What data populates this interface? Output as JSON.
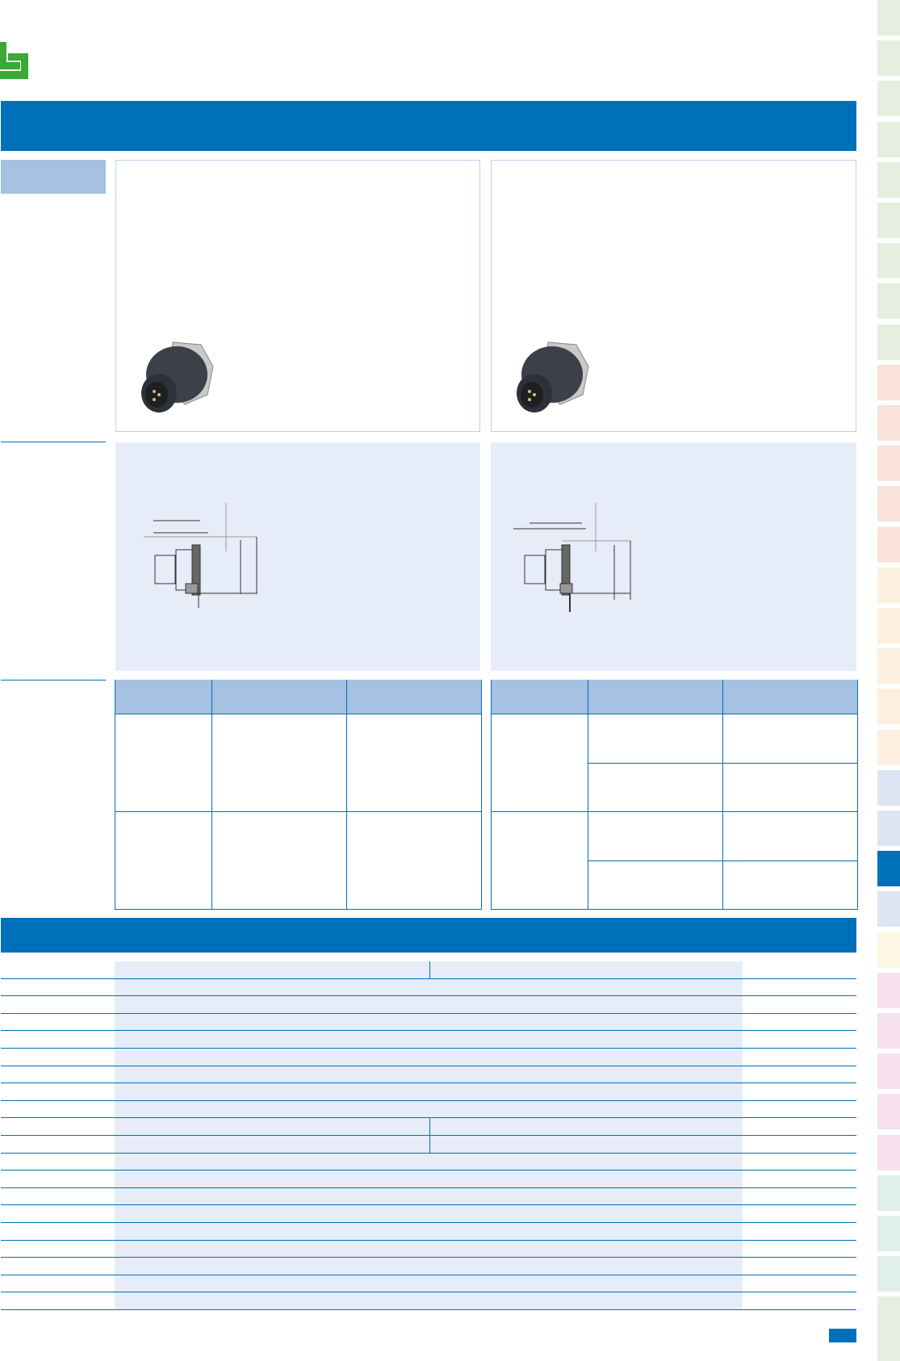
{
  "colors": {
    "brand_blue": "#0070b8",
    "light_blue": "#a6c1e1",
    "pale_blue": "#e6edf8",
    "logo_green": "#3aa935"
  },
  "side_tabs": [
    "#e6efdf",
    "#e6efdf",
    "#e6efdf",
    "#e6efdf",
    "#e6efdf",
    "#e6efdf",
    "#e6efdf",
    "#e6efdf",
    "#e6efdf",
    "#f8e2d9",
    "#f8e2d9",
    "#f8e2d9",
    "#f8e2d9",
    "#f8e2d9",
    "#fdefe0",
    "#fdefe0",
    "#fdefe0",
    "#fdefe0",
    "#fdefe0",
    "#dde5f2",
    "#dde5f2",
    "#0070b8",
    "#dde5f2",
    "#fdf8e4",
    "#f6e1ec",
    "#f6e1ec",
    "#f6e1ec",
    "#f6e1ec",
    "#f6e1ec",
    "#e0efeb",
    "#e0efeb",
    "#e0efeb",
    "#e6efdf"
  ],
  "icons": {
    "logo": "binder-logo",
    "product_image": "connector-photo",
    "drawing": "technical-drawing"
  }
}
